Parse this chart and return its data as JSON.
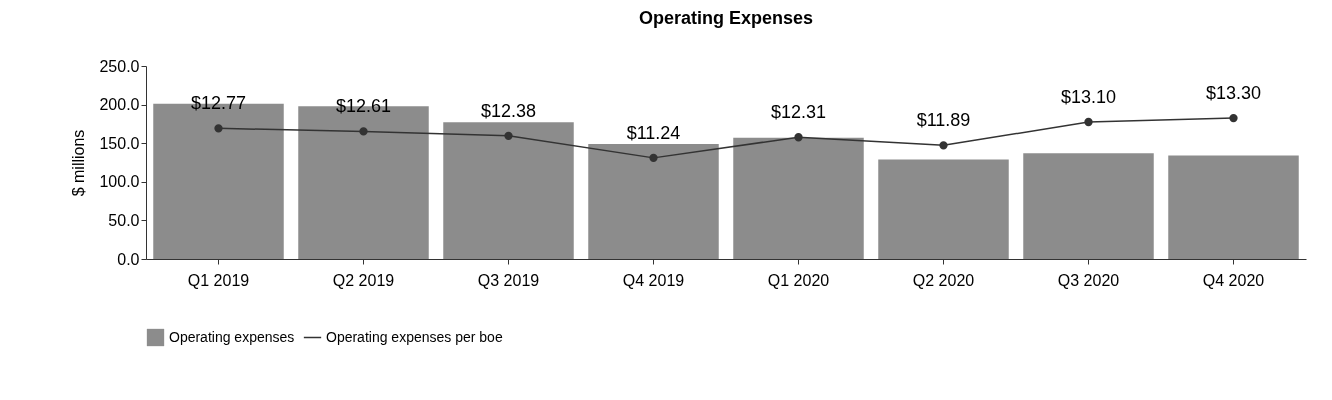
{
  "chart_data": {
    "type": "bar",
    "title": "Operating Expenses",
    "ylabel": "$ millions",
    "categories": [
      "Q1 2019",
      "Q2 2019",
      "Q3 2019",
      "Q4 2019",
      "Q1 2020",
      "Q2 2020",
      "Q3 2020",
      "Q4 2020"
    ],
    "series": [
      {
        "name": "Operating expenses",
        "color": "#8c8c8c",
        "values": [
          201,
          198,
          177,
          149,
          157,
          129,
          137,
          134
        ]
      },
      {
        "name": "Operating expenses per boe",
        "type": "line",
        "axis": "y2",
        "color": "#333333",
        "values": [
          12.77,
          12.61,
          12.38,
          11.24,
          12.31,
          11.89,
          13.1,
          13.3
        ],
        "value_labels": [
          "$12.77",
          "$12.61",
          "$12.38",
          "$11.24",
          "$12.31",
          "$11.89",
          "$13.10",
          "$13.30"
        ]
      }
    ],
    "ylim": [
      0,
      250
    ],
    "yticks": [
      {
        "value": 0,
        "label": "0.0"
      },
      {
        "value": 50,
        "label": "50.0"
      },
      {
        "value": 100,
        "label": "100.0"
      },
      {
        "value": 150,
        "label": "150.0"
      },
      {
        "value": 200,
        "label": "200.0"
      },
      {
        "value": 250,
        "label": "250.0"
      }
    ],
    "y2lim": [
      6,
      16
    ],
    "marker": "circle",
    "legend": "bottom",
    "grid": false
  }
}
